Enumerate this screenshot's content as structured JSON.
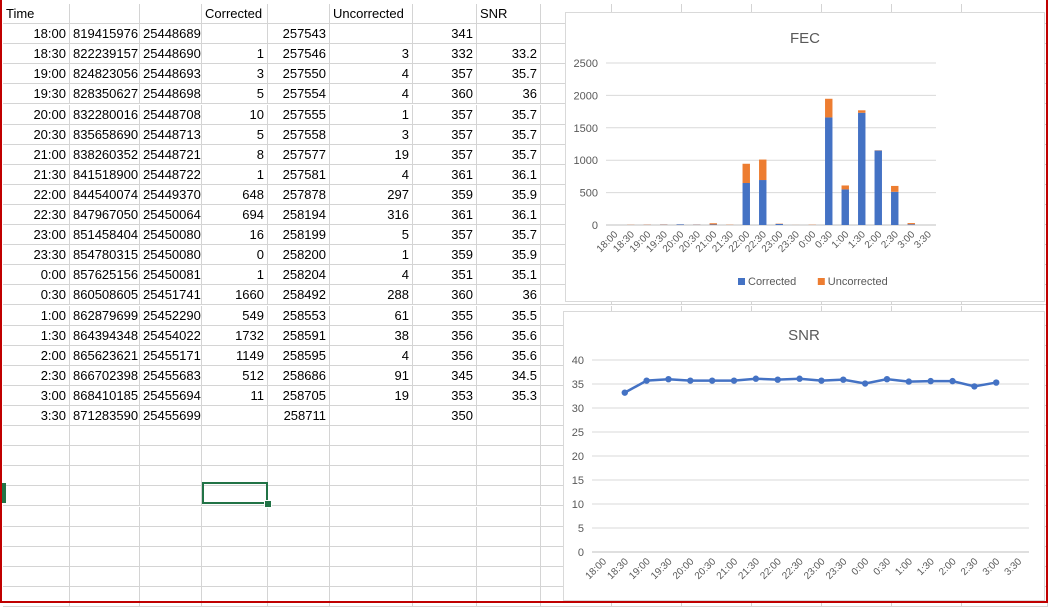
{
  "sheet": {
    "headers": [
      "Time",
      "",
      "",
      "Corrected",
      "",
      "Uncorrected",
      "",
      "SNR"
    ],
    "rows": [
      [
        "18:00",
        "819415976",
        "25448689",
        "",
        "257543",
        "",
        "341",
        ""
      ],
      [
        "18:30",
        "822239157",
        "25448690",
        "1",
        "257546",
        "3",
        "332",
        "33.2"
      ],
      [
        "19:00",
        "824823056",
        "25448693",
        "3",
        "257550",
        "4",
        "357",
        "35.7"
      ],
      [
        "19:30",
        "828350627",
        "25448698",
        "5",
        "257554",
        "4",
        "360",
        "36"
      ],
      [
        "20:00",
        "832280016",
        "25448708",
        "10",
        "257555",
        "1",
        "357",
        "35.7"
      ],
      [
        "20:30",
        "835658690",
        "25448713",
        "5",
        "257558",
        "3",
        "357",
        "35.7"
      ],
      [
        "21:00",
        "838260352",
        "25448721",
        "8",
        "257577",
        "19",
        "357",
        "35.7"
      ],
      [
        "21:30",
        "841518900",
        "25448722",
        "1",
        "257581",
        "4",
        "361",
        "36.1"
      ],
      [
        "22:00",
        "844540074",
        "25449370",
        "648",
        "257878",
        "297",
        "359",
        "35.9"
      ],
      [
        "22:30",
        "847967050",
        "25450064",
        "694",
        "258194",
        "316",
        "361",
        "36.1"
      ],
      [
        "23:00",
        "851458404",
        "25450080",
        "16",
        "258199",
        "5",
        "357",
        "35.7"
      ],
      [
        "23:30",
        "854780315",
        "25450080",
        "0",
        "258200",
        "1",
        "359",
        "35.9"
      ],
      [
        "0:00",
        "857625156",
        "25450081",
        "1",
        "258204",
        "4",
        "351",
        "35.1"
      ],
      [
        "0:30",
        "860508605",
        "25451741",
        "1660",
        "258492",
        "288",
        "360",
        "36"
      ],
      [
        "1:00",
        "862879699",
        "25452290",
        "549",
        "258553",
        "61",
        "355",
        "35.5"
      ],
      [
        "1:30",
        "864394348",
        "25454022",
        "1732",
        "258591",
        "38",
        "356",
        "35.6"
      ],
      [
        "2:00",
        "865623621",
        "25455171",
        "1149",
        "258595",
        "4",
        "356",
        "35.6"
      ],
      [
        "2:30",
        "866702398",
        "25455683",
        "512",
        "258686",
        "91",
        "345",
        "34.5"
      ],
      [
        "3:00",
        "868410185",
        "25455694",
        "11",
        "258705",
        "19",
        "353",
        "35.3"
      ],
      [
        "3:30",
        "871283590",
        "25455699",
        "",
        "258711",
        "",
        "350",
        ""
      ]
    ]
  },
  "chart_data": [
    {
      "type": "bar",
      "stacked": true,
      "title": "FEC",
      "categories": [
        "18:00",
        "18:30",
        "19:00",
        "19:30",
        "20:00",
        "20:30",
        "21:00",
        "21:30",
        "22:00",
        "22:30",
        "23:00",
        "23:30",
        "0:00",
        "0:30",
        "1:00",
        "1:30",
        "2:00",
        "2:30",
        "3:00",
        "3:30"
      ],
      "series": [
        {
          "name": "Corrected",
          "color": "#4472c4",
          "values": [
            null,
            1,
            3,
            5,
            10,
            5,
            8,
            1,
            648,
            694,
            16,
            0,
            1,
            1660,
            549,
            1732,
            1149,
            512,
            11,
            null
          ]
        },
        {
          "name": "Uncorrected",
          "color": "#ed7d31",
          "values": [
            null,
            3,
            4,
            4,
            1,
            3,
            19,
            4,
            297,
            316,
            5,
            1,
            4,
            288,
            61,
            38,
            4,
            91,
            19,
            null
          ]
        }
      ],
      "ylim": [
        0,
        2500
      ],
      "yticks": [
        0,
        500,
        1000,
        1500,
        2000,
        2500
      ],
      "grid": true,
      "legend": "bottom"
    },
    {
      "type": "line",
      "title": "SNR",
      "categories": [
        "18:00",
        "18:30",
        "19:00",
        "19:30",
        "20:00",
        "20:30",
        "21:00",
        "21:30",
        "22:00",
        "22:30",
        "23:00",
        "23:30",
        "0:00",
        "0:30",
        "1:00",
        "1:30",
        "2:00",
        "2:30",
        "3:00",
        "3:30"
      ],
      "series": [
        {
          "name": "",
          "color": "#4472c4",
          "values": [
            null,
            33.2,
            35.7,
            36,
            35.7,
            35.7,
            35.7,
            36.1,
            35.9,
            36.1,
            35.7,
            35.9,
            35.1,
            36,
            35.5,
            35.6,
            35.6,
            34.5,
            35.3,
            null
          ]
        }
      ],
      "ylim": [
        0,
        40
      ],
      "yticks": [
        0,
        5,
        10,
        15,
        20,
        25,
        30,
        35,
        40
      ],
      "grid": true,
      "legend": "none"
    }
  ]
}
